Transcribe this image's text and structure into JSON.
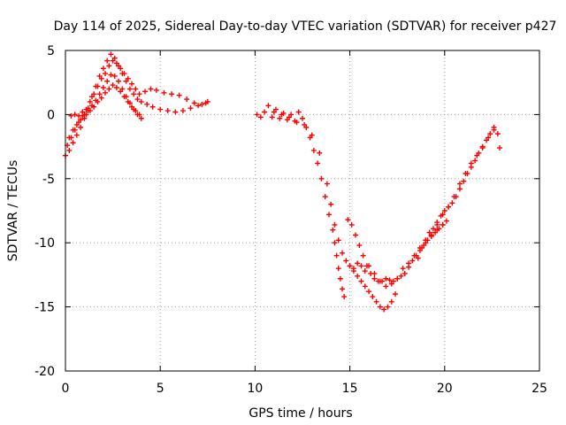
{
  "chart_data": {
    "type": "scatter",
    "title": "Day 114 of 2025, Sidereal Day-to-day VTEC variation (SDTVAR) for receiver p427",
    "xlabel": "GPS time / hours",
    "ylabel": "SDTVAR / TECUs",
    "xlim": [
      0,
      25
    ],
    "ylim": [
      -20,
      5
    ],
    "xticks": [
      0,
      5,
      10,
      15,
      20,
      25
    ],
    "yticks": [
      -20,
      -15,
      -10,
      -5,
      0,
      5
    ],
    "grid": true,
    "marker": "plus",
    "color": "#ff0000",
    "series": [
      {
        "x": [
          0.0,
          0.2,
          0.4,
          0.6,
          0.8,
          1.0,
          1.2,
          1.4,
          1.6,
          1.8,
          2.0,
          2.2,
          2.4,
          2.6,
          2.8,
          3.0,
          3.2,
          3.4,
          3.6,
          3.8,
          4.0,
          4.3,
          4.6,
          5.0,
          5.4,
          5.8,
          6.2,
          6.6,
          7.0,
          7.4
        ],
        "y": [
          -3.2,
          -2.8,
          -2.2,
          -1.6,
          -1.0,
          -0.3,
          0.5,
          1.4,
          2.2,
          3.0,
          3.6,
          4.2,
          4.7,
          4.4,
          3.8,
          3.2,
          2.6,
          2.0,
          1.6,
          1.2,
          1.0,
          0.8,
          0.6,
          0.4,
          0.3,
          0.2,
          0.3,
          0.5,
          0.7,
          0.9
        ]
      },
      {
        "x": [
          0.1,
          0.3,
          0.5,
          0.7,
          0.9,
          1.1,
          1.3,
          1.5,
          1.7,
          1.9,
          2.1,
          2.3,
          2.5,
          2.7,
          2.9,
          3.1,
          3.3,
          3.5,
          3.7,
          3.9,
          4.2,
          4.5,
          4.8,
          5.2,
          5.6,
          6.0,
          6.4,
          6.8,
          7.2,
          7.5
        ],
        "y": [
          -2.4,
          -1.8,
          -1.2,
          -0.6,
          -0.1,
          0.4,
          1.0,
          1.6,
          2.2,
          2.8,
          3.2,
          3.8,
          4.2,
          4.0,
          3.6,
          3.2,
          2.8,
          2.4,
          2.0,
          1.6,
          1.8,
          2.0,
          1.9,
          1.7,
          1.6,
          1.5,
          1.2,
          0.9,
          0.8,
          1.0
        ]
      },
      {
        "x": [
          0.2,
          0.4,
          0.6,
          0.8,
          1.0,
          1.2,
          1.4,
          1.6,
          1.8,
          2.0,
          2.2,
          2.4,
          2.6,
          2.8,
          3.0,
          3.2,
          3.4,
          3.6,
          3.8,
          4.0
        ],
        "y": [
          -1.8,
          -1.2,
          -0.8,
          -0.4,
          0.0,
          0.3,
          0.7,
          1.1,
          1.6,
          2.1,
          2.6,
          3.1,
          3.0,
          2.6,
          2.0,
          1.4,
          0.9,
          0.4,
          0.0,
          -0.3
        ]
      },
      {
        "x": [
          0.3,
          0.5,
          0.7,
          0.9,
          1.1,
          1.3,
          1.5,
          1.7,
          1.9,
          2.1,
          2.3,
          2.5,
          2.7,
          2.9,
          3.1,
          3.3,
          3.5,
          3.7,
          3.9
        ],
        "y": [
          -0.1,
          0.0,
          -0.1,
          0.2,
          0.0,
          0.3,
          0.6,
          1.0,
          1.3,
          1.7,
          2.0,
          2.3,
          2.1,
          1.8,
          1.4,
          1.0,
          0.6,
          0.3,
          0.0
        ]
      },
      {
        "x": [
          10.1,
          10.3,
          10.5,
          10.7,
          10.9,
          11.1,
          11.3,
          11.5,
          11.7,
          11.9,
          12.1,
          12.3,
          12.5,
          12.7,
          12.9,
          13.1,
          13.3,
          13.5,
          13.7,
          13.9,
          14.1,
          14.2,
          14.3,
          14.4,
          14.5,
          14.6,
          14.7
        ],
        "y": [
          0.0,
          -0.2,
          0.2,
          0.7,
          -0.2,
          0.4,
          -0.3,
          0.1,
          -0.4,
          0.0,
          -0.5,
          0.2,
          -0.3,
          -1.0,
          -1.8,
          -2.8,
          -3.8,
          -5.0,
          -6.4,
          -7.8,
          -9.0,
          -10.0,
          -11.0,
          -12.0,
          -12.8,
          -13.6,
          -14.2
        ]
      },
      {
        "x": [
          11.0,
          11.4,
          11.8,
          12.2,
          12.6,
          13.0,
          13.4,
          13.8,
          14.0,
          14.2,
          14.4,
          14.6,
          14.8,
          15.0,
          15.2,
          15.4,
          15.6,
          15.8,
          16.0,
          16.2,
          16.4,
          16.6,
          16.8,
          17.0,
          17.2,
          17.4
        ],
        "y": [
          0.2,
          0.0,
          -0.2,
          -0.6,
          -0.8,
          -1.6,
          -3.0,
          -5.4,
          -7.0,
          -8.6,
          -9.8,
          -10.8,
          -11.4,
          -11.8,
          -12.2,
          -12.6,
          -13.0,
          -13.4,
          -13.8,
          -14.2,
          -14.6,
          -15.0,
          -15.2,
          -15.0,
          -14.6,
          -14.0
        ]
      },
      {
        "x": [
          14.9,
          15.1,
          15.3,
          15.5,
          15.7,
          15.9,
          16.1,
          16.3,
          16.5,
          16.7,
          16.9,
          17.1,
          17.3,
          17.5,
          17.7,
          17.9,
          18.1,
          18.3,
          18.5,
          18.7,
          18.9,
          19.1,
          19.3,
          19.5,
          19.7,
          19.9,
          20.1
        ],
        "y": [
          -8.2,
          -8.6,
          -9.4,
          -10.2,
          -11.0,
          -11.8,
          -12.4,
          -12.8,
          -13.0,
          -13.0,
          -12.8,
          -12.9,
          -13.0,
          -12.8,
          -12.6,
          -12.4,
          -11.9,
          -11.4,
          -11.0,
          -10.6,
          -10.2,
          -9.8,
          -9.5,
          -9.2,
          -8.9,
          -8.6,
          -8.3
        ]
      },
      {
        "x": [
          15.0,
          15.2,
          15.4,
          15.6,
          15.8,
          16.0,
          16.3,
          16.6,
          16.9,
          17.2,
          17.5,
          17.8,
          18.1,
          18.4,
          18.7,
          19.0,
          19.3,
          19.6,
          19.9
        ],
        "y": [
          -11.8,
          -12.0,
          -11.6,
          -11.8,
          -12.2,
          -11.8,
          -12.4,
          -13.0,
          -13.4,
          -13.2,
          -12.8,
          -12.0,
          -11.6,
          -11.0,
          -10.4,
          -9.8,
          -9.4,
          -9.0,
          -8.6
        ]
      },
      {
        "x": [
          18.6,
          18.8,
          19.0,
          19.2,
          19.4,
          19.6,
          19.8,
          20.0,
          20.2,
          20.4,
          20.6,
          20.8,
          21.0,
          21.2,
          21.4,
          21.6,
          21.8,
          22.0,
          22.2,
          22.4,
          22.6,
          22.8
        ],
        "y": [
          -11.2,
          -10.4,
          -9.8,
          -9.2,
          -8.9,
          -8.4,
          -7.9,
          -7.5,
          -7.2,
          -6.9,
          -6.4,
          -5.8,
          -5.2,
          -4.6,
          -4.1,
          -3.6,
          -3.0,
          -2.5,
          -2.0,
          -1.5,
          -1.2,
          -1.5
        ]
      },
      {
        "x": [
          19.0,
          19.3,
          19.6,
          19.9,
          20.2,
          20.5,
          20.8,
          21.1,
          21.4,
          21.7,
          22.0,
          22.3,
          22.6,
          22.9
        ],
        "y": [
          -10.0,
          -9.4,
          -8.6,
          -7.8,
          -7.2,
          -6.4,
          -5.4,
          -4.6,
          -3.8,
          -3.2,
          -2.6,
          -1.8,
          -1.0,
          -2.6
        ]
      }
    ]
  }
}
